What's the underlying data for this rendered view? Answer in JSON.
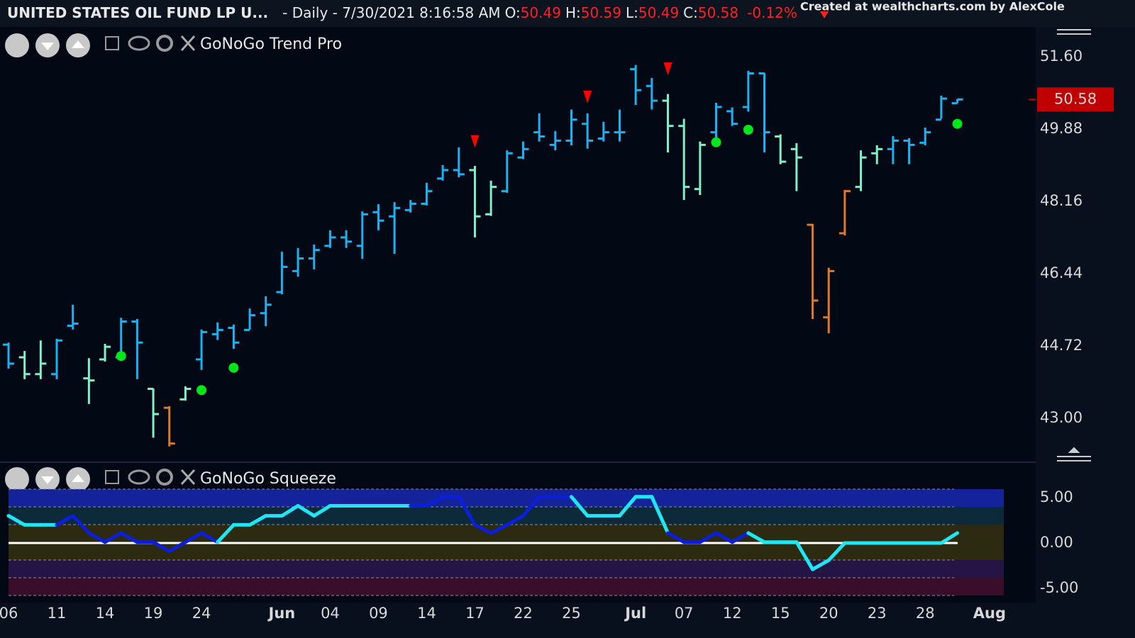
{
  "header": {
    "symbol": "UNITED STATES OIL FUND LP U...",
    "period": "- Daily - 7/30/2021 8:16:58 AM",
    "o_label": "O:",
    "o": "50.49",
    "h_label": "H:",
    "h": "50.59",
    "l_label": "L:",
    "l": "50.49",
    "c_label": "C:",
    "c": "50.58",
    "change": "-0.12%",
    "credit": "Created at wealthcharts.com by AlexCole"
  },
  "chart_data": [
    {
      "type": "ohlc",
      "title": "GoNoGo Trend Pro",
      "open": [
        44.75,
        44.45,
        44.05,
        44.05,
        45.2,
        43.95,
        44.4,
        44.45,
        45.3,
        43.7,
        43.25,
        43.45,
        44.4,
        45.0,
        45.15,
        45.1,
        45.5,
        46.0,
        46.5,
        46.8,
        47.1,
        47.3,
        47.1,
        47.9,
        47.8,
        47.95,
        48.1,
        48.7,
        48.9,
        48.9,
        47.85,
        48.4,
        49.2,
        49.8,
        49.5,
        49.6,
        50.0,
        49.65,
        49.8,
        51.3,
        50.9,
        50.55,
        49.95,
        48.45,
        49.8,
        50.3,
        50.4,
        51.2,
        49.7,
        49.4,
        47.6,
        45.4,
        47.4,
        48.5,
        49.3,
        49.4,
        49.6,
        49.55,
        50.1,
        50.49
      ],
      "high": [
        44.8,
        44.6,
        44.85,
        44.89,
        45.7,
        44.43,
        44.77,
        45.39,
        45.36,
        43.71,
        43.29,
        43.76,
        45.11,
        45.28,
        45.23,
        45.61,
        45.9,
        46.96,
        47.05,
        47.13,
        47.47,
        47.47,
        47.92,
        48.09,
        48.14,
        48.19,
        48.6,
        49.02,
        49.44,
        49.0,
        48.65,
        49.37,
        49.58,
        50.25,
        49.83,
        50.34,
        50.25,
        50.05,
        50.34,
        51.4,
        51.09,
        50.71,
        50.12,
        49.58,
        50.5,
        50.39,
        51.26,
        51.21,
        49.75,
        49.54,
        47.62,
        46.58,
        48.43,
        49.37,
        49.49,
        49.71,
        49.66,
        49.91,
        50.67,
        50.59
      ],
      "low": [
        44.18,
        43.93,
        43.93,
        43.93,
        45.11,
        43.34,
        44.35,
        44.43,
        43.93,
        42.54,
        42.33,
        43.42,
        44.15,
        44.86,
        44.65,
        45.11,
        45.19,
        45.95,
        46.37,
        46.54,
        47.05,
        47.05,
        46.79,
        47.47,
        46.91,
        47.89,
        48.06,
        48.65,
        48.73,
        47.3,
        47.81,
        48.36,
        49.16,
        49.58,
        49.37,
        49.49,
        49.41,
        49.58,
        49.58,
        50.45,
        50.34,
        49.32,
        48.19,
        48.31,
        49.58,
        49.95,
        50.29,
        49.32,
        49.04,
        48.4,
        45.36,
        45.02,
        47.35,
        48.4,
        49.04,
        49.04,
        49.04,
        49.49,
        50.12,
        50.49
      ],
      "close": [
        44.3,
        44.05,
        44.3,
        44.85,
        45.25,
        43.9,
        44.7,
        45.3,
        44.8,
        43.1,
        42.4,
        43.7,
        45.05,
        45.1,
        44.8,
        45.45,
        45.7,
        46.6,
        46.8,
        47.0,
        47.3,
        47.2,
        47.85,
        47.7,
        48.0,
        48.1,
        48.4,
        48.9,
        48.8,
        47.8,
        48.5,
        49.3,
        49.4,
        49.7,
        49.6,
        50.1,
        49.6,
        49.8,
        49.8,
        50.8,
        50.55,
        49.95,
        48.5,
        49.5,
        50.4,
        50.0,
        51.2,
        49.8,
        49.1,
        49.2,
        45.8,
        46.5,
        48.4,
        49.2,
        49.4,
        49.6,
        49.5,
        49.8,
        50.6,
        50.58
      ],
      "colors": [
        "#1ab2f0",
        "#80f0c8",
        "#80f0c8",
        "#1ab2f0",
        "#1ab2f0",
        "#80f0c8",
        "#80f0c8",
        "#1ab2f0",
        "#1ab2f0",
        "#80f0c8",
        "#e0782a",
        "#80f0c8",
        "#1ab2f0",
        "#1ab2f0",
        "#1ab2f0",
        "#1ab2f0",
        "#1ab2f0",
        "#1ab2f0",
        "#1ab2f0",
        "#1ab2f0",
        "#1ab2f0",
        "#1ab2f0",
        "#1ab2f0",
        "#1ab2f0",
        "#1ab2f0",
        "#1ab2f0",
        "#1ab2f0",
        "#1ab2f0",
        "#1ab2f0",
        "#80f0c8",
        "#80f0c8",
        "#1ab2f0",
        "#1ab2f0",
        "#1ab2f0",
        "#1ab2f0",
        "#1ab2f0",
        "#1ab2f0",
        "#1ab2f0",
        "#1ab2f0",
        "#1ab2f0",
        "#1ab2f0",
        "#80f0c8",
        "#80f0c8",
        "#80f0c8",
        "#1ab2f0",
        "#1ab2f0",
        "#1ab2f0",
        "#1ab2f0",
        "#80f0c8",
        "#80f0c8",
        "#e0782a",
        "#e0782a",
        "#e0782a",
        "#80f0c8",
        "#80f0c8",
        "#1ab2f0",
        "#1ab2f0",
        "#1ab2f0",
        "#1ab2f0",
        "#1ab2f0"
      ],
      "sell_signals": {
        "x": [
          29,
          36,
          41
        ],
        "values": [
          49.58,
          50.64,
          51.31
        ],
        "color": "#ff0000"
      },
      "buy_signals": {
        "x": [
          7,
          12,
          14,
          44,
          46,
          59
        ],
        "values": [
          44.48,
          43.67,
          44.2,
          49.56,
          49.86,
          50.0
        ],
        "color": "#00e61a"
      },
      "last_price": 50.58,
      "ylim": [
        41.99,
        52.27
      ],
      "yticks": [
        {
          "value": 43,
          "label": "43.00"
        },
        {
          "value": 44.72,
          "label": "44.72"
        },
        {
          "value": 46.44,
          "label": "46.44"
        },
        {
          "value": 48.16,
          "label": "48.16"
        },
        {
          "value": 49.88,
          "label": "49.88"
        },
        {
          "value": 51.6,
          "label": "51.60"
        }
      ],
      "xlim": [
        -0.53,
        63.87
      ],
      "xticks": [
        {
          "value": 0,
          "label": "06"
        },
        {
          "value": 3,
          "label": "11"
        },
        {
          "value": 6,
          "label": "14"
        },
        {
          "value": 9,
          "label": "19"
        },
        {
          "value": 12,
          "label": "24"
        },
        {
          "value": 17,
          "label": "Jun"
        },
        {
          "value": 20,
          "label": "04"
        },
        {
          "value": 23,
          "label": "09"
        },
        {
          "value": 26,
          "label": "14"
        },
        {
          "value": 29,
          "label": "17"
        },
        {
          "value": 32,
          "label": "22"
        },
        {
          "value": 35,
          "label": "25"
        },
        {
          "value": 39,
          "label": "Jul"
        },
        {
          "value": 42,
          "label": "07"
        },
        {
          "value": 45,
          "label": "12"
        },
        {
          "value": 48,
          "label": "15"
        },
        {
          "value": 51,
          "label": "20"
        },
        {
          "value": 54,
          "label": "23"
        },
        {
          "value": 57,
          "label": "28"
        },
        {
          "value": 61,
          "label": "Aug"
        }
      ]
    },
    {
      "type": "line",
      "title": "GoNoGo Squeeze",
      "values": [
        3.0,
        2.0,
        2.0,
        2.0,
        3.0,
        1.1,
        0.1,
        1.1,
        0.1,
        0.1,
        -0.9,
        0.1,
        1.1,
        0.1,
        2.0,
        2.0,
        3.0,
        3.0,
        4.1,
        3.0,
        4.1,
        4.1,
        4.1,
        4.1,
        4.1,
        4.1,
        4.1,
        5.1,
        5.1,
        2.0,
        1.1,
        2.0,
        3.0,
        5.1,
        5.1,
        5.1,
        3.0,
        3.0,
        3.0,
        5.1,
        5.1,
        1.1,
        0.1,
        0.1,
        1.1,
        0.1,
        1.1,
        0.1,
        0.1,
        0.1,
        -2.9,
        -1.9,
        0,
        0,
        0,
        0,
        0,
        0,
        0,
        1.1
      ],
      "colors": [
        "#1ee6f5",
        "#1ee6f5",
        "#1ee6f5",
        "#1ee6f5",
        "#0b1ed8",
        "#0b1ed8",
        "#0b1ed8",
        "#0b1ed8",
        "#0b1ed8",
        "#0b1ed8",
        "#0b1ed8",
        "#0b1ed8",
        "#0b1ed8",
        "#0b1ed8",
        "#1ee6f5",
        "#1ee6f5",
        "#1ee6f5",
        "#1ee6f5",
        "#1ee6f5",
        "#1ee6f5",
        "#1ee6f5",
        "#1ee6f5",
        "#1ee6f5",
        "#1ee6f5",
        "#1ee6f5",
        "#1ee6f5",
        "#0b1ed8",
        "#0b1ed8",
        "#0b1ed8",
        "#0b1ed8",
        "#0b1ed8",
        "#0b1ed8",
        "#0b1ed8",
        "#0b1ed8",
        "#0b1ed8",
        "#0b1ed8",
        "#1ee6f5",
        "#1ee6f5",
        "#1ee6f5",
        "#1ee6f5",
        "#1ee6f5",
        "#1ee6f5",
        "#0b1ed8",
        "#0b1ed8",
        "#0b1ed8",
        "#0b1ed8",
        "#0b1ed8",
        "#1ee6f5",
        "#1ee6f5",
        "#1ee6f5",
        "#1ee6f5",
        "#1ee6f5",
        "#1ee6f5",
        "#1ee6f5",
        "#1ee6f5",
        "#1ee6f5",
        "#1ee6f5",
        "#1ee6f5",
        "#1ee6f5",
        "#1ee6f5"
      ],
      "ylim": [
        -6.56,
        8.67
      ],
      "yticks": [
        {
          "value": 5,
          "label": "5.00"
        },
        {
          "value": 0,
          "label": "0.00"
        },
        {
          "value": -5,
          "label": "-5.00"
        }
      ],
      "xlim": [
        -0.53,
        63.87
      ]
    }
  ]
}
